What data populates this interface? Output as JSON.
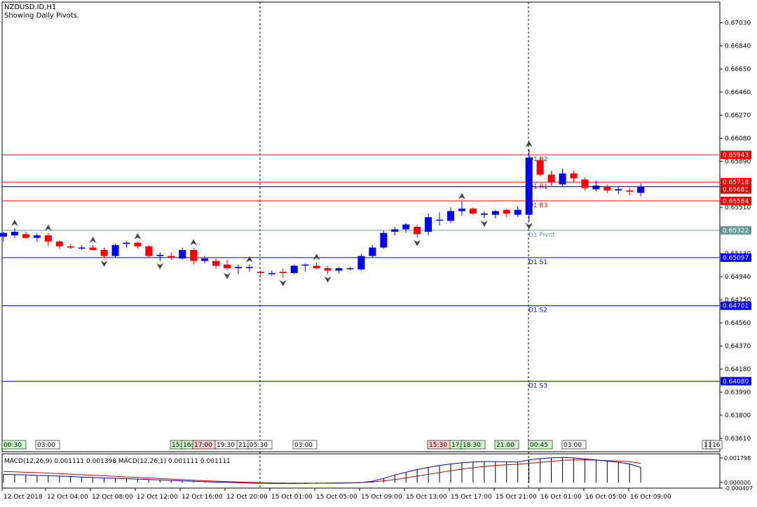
{
  "header": {
    "symbol": "NZDUSD.ID,H1",
    "subtitle": "Showing Daily Pivots."
  },
  "price_axis": {
    "ticks": [
      "0.67030",
      "0.66840",
      "0.66650",
      "0.66460",
      "0.66270",
      "0.66080",
      "0.65890",
      "0.65510",
      "0.65320",
      "0.65130",
      "0.64940",
      "0.64750",
      "0.64560",
      "0.64370",
      "0.64180",
      "0.63990",
      "0.63800",
      "0.63610"
    ],
    "min": 0.635,
    "max": 0.672
  },
  "pivots": [
    {
      "label": "D1 R3",
      "value": 0.65564,
      "tag": "0.65564",
      "color": "#ff0000"
    },
    {
      "label": "D1 R2",
      "value": 0.65943,
      "tag": "0.65943",
      "color": "#ff0000"
    },
    {
      "label": "D1 R1",
      "value": 0.65718,
      "tag": "0.65718",
      "color": "#ff0000"
    },
    {
      "label": "D1 Pivot",
      "value": 0.65322,
      "tag": "0.65322",
      "color": "#669999"
    },
    {
      "label": "D1 S1",
      "value": 0.65097,
      "tag": "0.65097",
      "color": "#0000ff"
    },
    {
      "label": "D1 S2",
      "value": 0.64701,
      "tag": "0.64701",
      "color": "#0000ff"
    },
    {
      "label": "D1 S3",
      "value": 0.6408,
      "tag": "0.64080",
      "color": "#0000ff"
    }
  ],
  "current_price": {
    "value": 0.65681,
    "tag": "0.65681"
  },
  "session_labels": [
    {
      "text": "00:30",
      "color": "#ccffcc"
    },
    {
      "text": "03:00",
      "color": "#ffffff"
    },
    {
      "text": "15:",
      "color": "#ccffcc"
    },
    {
      "text": "16:",
      "color": "#ccffcc"
    },
    {
      "text": "17:00",
      "color": "#ffcccc"
    },
    {
      "text": "19:30",
      "color": "#ffffff"
    },
    {
      "text": "21:",
      "color": "#ffffff"
    },
    {
      "text": "05:30",
      "color": "#ffffff"
    },
    {
      "text": "03:00",
      "color": "#ffffff"
    },
    {
      "text": "15:30",
      "color": "#ffcccc"
    },
    {
      "text": "17:",
      "color": "#ccffcc"
    },
    {
      "text": "18:30",
      "color": "#ccffcc"
    },
    {
      "text": "21:00",
      "color": "#ccffcc"
    },
    {
      "text": "00:45",
      "color": "#ccffcc"
    },
    {
      "text": "03:00",
      "color": "#ffffff"
    },
    {
      "text": "1",
      "color": "#ffffff"
    },
    {
      "text": "1",
      "color": "#ffffff"
    },
    {
      "text": "16",
      "color": "#ffffff"
    }
  ],
  "macd": {
    "label": "MACD(12,26,9) 0.001111 0.001398 MACD(12,26,1) 0.001111 0.001111",
    "ticks": [
      "0.001798",
      "0.000000",
      "-0.000407"
    ],
    "min": -0.000407,
    "max": 0.0021
  },
  "time_axis": [
    "12 Oct 2018",
    "12 Oct 04:00",
    "12 Oct 08:00",
    "12 Oct 12:00",
    "12 Oct 16:00",
    "12 Oct 20:00",
    "15 Oct 01:00",
    "15 Oct 05:00",
    "15 Oct 09:00",
    "15 Oct 13:00",
    "15 Oct 17:00",
    "15 Oct 21:00",
    "16 Oct 01:00",
    "16 Oct 05:00",
    "16 Oct 09:00"
  ],
  "colors": {
    "bull": "#0000ff",
    "bear": "#ff0000",
    "grid_separator": "#000000",
    "macd_signal": "#cc0000",
    "macd_line": "#0000cc"
  },
  "chart_data": {
    "type": "candlestick",
    "symbol": "NZDUSD.ID",
    "timeframe": "H1",
    "candles": [
      {
        "o": 0.6527,
        "h": 0.6531,
        "l": 0.6523,
        "c": 0.653
      },
      {
        "o": 0.6528,
        "h": 0.6534,
        "l": 0.6526,
        "c": 0.6531
      },
      {
        "o": 0.6529,
        "h": 0.6531,
        "l": 0.6525,
        "c": 0.6526
      },
      {
        "o": 0.6526,
        "h": 0.653,
        "l": 0.6523,
        "c": 0.6528
      },
      {
        "o": 0.6528,
        "h": 0.653,
        "l": 0.6519,
        "c": 0.6523
      },
      {
        "o": 0.6523,
        "h": 0.6524,
        "l": 0.6517,
        "c": 0.6519
      },
      {
        "o": 0.6519,
        "h": 0.6521,
        "l": 0.6517,
        "c": 0.6518
      },
      {
        "o": 0.6518,
        "h": 0.652,
        "l": 0.6516,
        "c": 0.6518
      },
      {
        "o": 0.6518,
        "h": 0.652,
        "l": 0.6516,
        "c": 0.6516
      },
      {
        "o": 0.6516,
        "h": 0.6518,
        "l": 0.6509,
        "c": 0.6511
      },
      {
        "o": 0.6511,
        "h": 0.6521,
        "l": 0.651,
        "c": 0.652
      },
      {
        "o": 0.6521,
        "h": 0.6523,
        "l": 0.6518,
        "c": 0.6522
      },
      {
        "o": 0.6522,
        "h": 0.6523,
        "l": 0.6517,
        "c": 0.6519
      },
      {
        "o": 0.6519,
        "h": 0.652,
        "l": 0.651,
        "c": 0.6511
      },
      {
        "o": 0.6511,
        "h": 0.6514,
        "l": 0.6507,
        "c": 0.6512
      },
      {
        "o": 0.6511,
        "h": 0.6514,
        "l": 0.6508,
        "c": 0.651
      },
      {
        "o": 0.6509,
        "h": 0.6518,
        "l": 0.6508,
        "c": 0.6516
      },
      {
        "o": 0.6516,
        "h": 0.6518,
        "l": 0.6504,
        "c": 0.6507
      },
      {
        "o": 0.6507,
        "h": 0.6511,
        "l": 0.6505,
        "c": 0.6509
      },
      {
        "o": 0.6507,
        "h": 0.6509,
        "l": 0.6501,
        "c": 0.6503
      },
      {
        "o": 0.6504,
        "h": 0.6508,
        "l": 0.6499,
        "c": 0.6501
      },
      {
        "o": 0.6501,
        "h": 0.6504,
        "l": 0.6496,
        "c": 0.6502
      },
      {
        "o": 0.6502,
        "h": 0.6504,
        "l": 0.6498,
        "c": 0.6502
      },
      {
        "o": 0.6498,
        "h": 0.6499,
        "l": 0.6495,
        "c": 0.6497
      },
      {
        "o": 0.6497,
        "h": 0.6499,
        "l": 0.6495,
        "c": 0.6497
      },
      {
        "o": 0.6498,
        "h": 0.6501,
        "l": 0.6493,
        "c": 0.6497
      },
      {
        "o": 0.6497,
        "h": 0.6504,
        "l": 0.6496,
        "c": 0.6503
      },
      {
        "o": 0.6504,
        "h": 0.6505,
        "l": 0.6498,
        "c": 0.6504
      },
      {
        "o": 0.6503,
        "h": 0.6506,
        "l": 0.65,
        "c": 0.6501
      },
      {
        "o": 0.6501,
        "h": 0.6503,
        "l": 0.6496,
        "c": 0.6499
      },
      {
        "o": 0.6499,
        "h": 0.6502,
        "l": 0.6497,
        "c": 0.6501
      },
      {
        "o": 0.6501,
        "h": 0.6502,
        "l": 0.6499,
        "c": 0.6501
      },
      {
        "o": 0.65,
        "h": 0.6513,
        "l": 0.6499,
        "c": 0.6511
      },
      {
        "o": 0.6511,
        "h": 0.652,
        "l": 0.651,
        "c": 0.6518
      },
      {
        "o": 0.6518,
        "h": 0.6532,
        "l": 0.6517,
        "c": 0.653
      },
      {
        "o": 0.6531,
        "h": 0.6535,
        "l": 0.6528,
        "c": 0.6533
      },
      {
        "o": 0.6533,
        "h": 0.6538,
        "l": 0.653,
        "c": 0.6537
      },
      {
        "o": 0.6535,
        "h": 0.6537,
        "l": 0.6526,
        "c": 0.6529
      },
      {
        "o": 0.6531,
        "h": 0.6546,
        "l": 0.6528,
        "c": 0.6543
      },
      {
        "o": 0.6541,
        "h": 0.6547,
        "l": 0.6536,
        "c": 0.6541
      },
      {
        "o": 0.654,
        "h": 0.6551,
        "l": 0.6538,
        "c": 0.6548
      },
      {
        "o": 0.6548,
        "h": 0.6556,
        "l": 0.6544,
        "c": 0.655
      },
      {
        "o": 0.655,
        "h": 0.6551,
        "l": 0.6545,
        "c": 0.6546
      },
      {
        "o": 0.6545,
        "h": 0.6548,
        "l": 0.6542,
        "c": 0.6546
      },
      {
        "o": 0.6545,
        "h": 0.6549,
        "l": 0.6542,
        "c": 0.6548
      },
      {
        "o": 0.6549,
        "h": 0.655,
        "l": 0.6543,
        "c": 0.6546
      },
      {
        "o": 0.6545,
        "h": 0.6552,
        "l": 0.6543,
        "c": 0.6549
      },
      {
        "o": 0.6545,
        "h": 0.6599,
        "l": 0.654,
        "c": 0.6592
      },
      {
        "o": 0.659,
        "h": 0.6592,
        "l": 0.6577,
        "c": 0.6578
      },
      {
        "o": 0.6578,
        "h": 0.6581,
        "l": 0.6569,
        "c": 0.6572
      },
      {
        "o": 0.657,
        "h": 0.6583,
        "l": 0.6568,
        "c": 0.6579
      },
      {
        "o": 0.6579,
        "h": 0.6581,
        "l": 0.6572,
        "c": 0.6575
      },
      {
        "o": 0.6574,
        "h": 0.6576,
        "l": 0.6565,
        "c": 0.6567
      },
      {
        "o": 0.6566,
        "h": 0.6573,
        "l": 0.6564,
        "c": 0.6569
      },
      {
        "o": 0.6568,
        "h": 0.657,
        "l": 0.6563,
        "c": 0.6565
      },
      {
        "o": 0.6565,
        "h": 0.6568,
        "l": 0.6562,
        "c": 0.6566
      },
      {
        "o": 0.6565,
        "h": 0.6567,
        "l": 0.6561,
        "c": 0.6564
      },
      {
        "o": 0.6563,
        "h": 0.6571,
        "l": 0.656,
        "c": 0.6568
      }
    ],
    "fractals_up": [
      1,
      4,
      8,
      12,
      17,
      22,
      28,
      41,
      47
    ],
    "fractals_down": [
      9,
      14,
      20,
      25,
      29,
      37,
      43,
      47
    ],
    "macd": {
      "histogram": [
        0.0006,
        0.00058,
        0.00056,
        0.00052,
        0.0005,
        0.00047,
        0.00044,
        0.0004,
        0.00037,
        0.00033,
        0.0003,
        0.00028,
        0.00025,
        0.00022,
        0.00019,
        0.00015,
        0.00012,
        9e-05,
        6e-05,
        3e-05,
        1e-05,
        -2e-05,
        -4e-05,
        -5e-05,
        -6e-05,
        -7e-05,
        -7e-05,
        -6e-05,
        -5e-05,
        -5e-05,
        -4e-05,
        -3e-05,
        -1e-05,
        0.0001,
        0.0003,
        0.00055,
        0.00075,
        0.00095,
        0.0011,
        0.00125,
        0.00135,
        0.00145,
        0.0015,
        0.00153,
        0.00153,
        0.00152,
        0.0015,
        0.00165,
        0.00175,
        0.0018,
        0.00183,
        0.0018,
        0.00172,
        0.00165,
        0.00157,
        0.00148,
        0.00135,
        0.00111
      ],
      "signal": [
        0.0008,
        0.00078,
        0.00075,
        0.00072,
        0.00069,
        0.00065,
        0.00061,
        0.00057,
        0.00053,
        0.00049,
        0.00045,
        0.00041,
        0.00037,
        0.00033,
        0.00029,
        0.00025,
        0.00021,
        0.00017,
        0.00013,
        0.0001,
        7e-05,
        4e-05,
        1e-05,
        -1e-05,
        -3e-05,
        -4e-05,
        -5e-05,
        -5e-05,
        -5e-05,
        -4e-05,
        -3e-05,
        -2e-05,
        0.0,
        5e-05,
        0.00012,
        0.00022,
        0.00034,
        0.00047,
        0.0006,
        0.00073,
        0.00086,
        0.00098,
        0.00108,
        0.00117,
        0.00124,
        0.0013,
        0.00133,
        0.0014,
        0.00148,
        0.00155,
        0.00162,
        0.00165,
        0.00166,
        0.00164,
        0.0016,
        0.00157,
        0.00152,
        0.0014
      ]
    }
  }
}
